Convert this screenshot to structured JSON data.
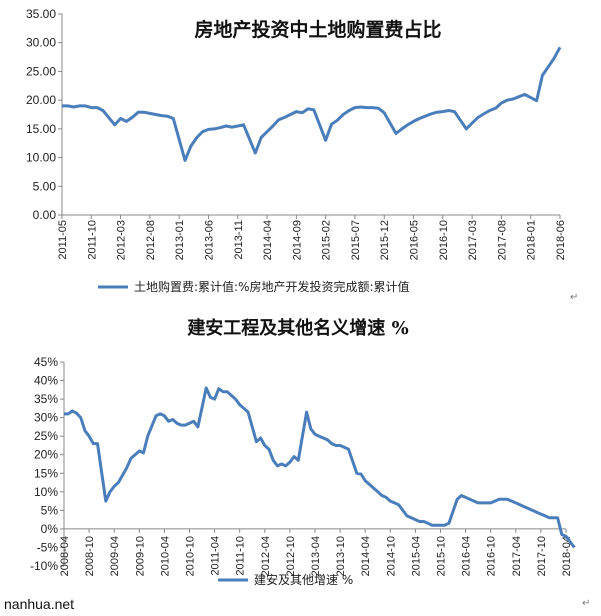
{
  "footer": {
    "site": "nanhua.net",
    "mark": "↵"
  },
  "chart_data": [
    {
      "type": "line",
      "title": "房地产投资中土地购置费占比",
      "ylim": [
        0,
        35
      ],
      "yticks": [
        "0.00",
        "5.00",
        "10.00",
        "15.00",
        "20.00",
        "25.00",
        "30.00",
        "35.00"
      ],
      "x_start": "2011-05",
      "x_end": "2018-06",
      "xticks": [
        "2011-05",
        "2011-10",
        "2012-03",
        "2012-08",
        "2013-01",
        "2013-06",
        "2013-11",
        "2014-04",
        "2014-09",
        "2015-02",
        "2015-07",
        "2015-12",
        "2016-05",
        "2016-10",
        "2017-03",
        "2017-08",
        "2018-01",
        "2018-06"
      ],
      "grid": false,
      "legend_position": "bottom",
      "series": [
        {
          "name": "土地购置费:累计值:%房地产开发投资完成额:累计值",
          "color": "#4a7ebb",
          "x": [
            "2011-05",
            "2011-06",
            "2011-07",
            "2011-08",
            "2011-09",
            "2011-10",
            "2011-11",
            "2011-12",
            "2012-02",
            "2012-03",
            "2012-04",
            "2012-05",
            "2012-06",
            "2012-07",
            "2012-08",
            "2012-09",
            "2012-10",
            "2012-11",
            "2012-12",
            "2013-02",
            "2013-03",
            "2013-04",
            "2013-05",
            "2013-06",
            "2013-07",
            "2013-08",
            "2013-09",
            "2013-10",
            "2013-11",
            "2013-12",
            "2014-02",
            "2014-03",
            "2014-04",
            "2014-05",
            "2014-06",
            "2014-07",
            "2014-08",
            "2014-09",
            "2014-10",
            "2014-11",
            "2014-12",
            "2015-02",
            "2015-03",
            "2015-04",
            "2015-05",
            "2015-06",
            "2015-07",
            "2015-08",
            "2015-09",
            "2015-10",
            "2015-11",
            "2015-12",
            "2016-02",
            "2016-03",
            "2016-04",
            "2016-05",
            "2016-06",
            "2016-07",
            "2016-08",
            "2016-09",
            "2016-10",
            "2016-11",
            "2016-12",
            "2017-02",
            "2017-03",
            "2017-04",
            "2017-05",
            "2017-06",
            "2017-07",
            "2017-08",
            "2017-09",
            "2017-10",
            "2017-11",
            "2017-12",
            "2018-02",
            "2018-03",
            "2018-04",
            "2018-05",
            "2018-06"
          ],
          "values": [
            19.0,
            19.0,
            18.8,
            19.0,
            19.0,
            18.7,
            18.7,
            18.2,
            15.7,
            16.8,
            16.3,
            17.0,
            17.9,
            17.9,
            17.7,
            17.5,
            17.3,
            17.2,
            16.8,
            9.5,
            12.0,
            13.5,
            14.5,
            14.9,
            15.0,
            15.2,
            15.5,
            15.3,
            15.5,
            15.7,
            10.8,
            13.5,
            14.5,
            15.5,
            16.6,
            17.0,
            17.5,
            18.0,
            17.8,
            18.5,
            18.3,
            13.0,
            15.8,
            16.5,
            17.5,
            18.2,
            18.7,
            18.8,
            18.7,
            18.7,
            18.6,
            17.8,
            14.2,
            15.0,
            15.7,
            16.3,
            16.8,
            17.2,
            17.6,
            17.9,
            18.0,
            18.2,
            18.0,
            15.0,
            16.0,
            17.0,
            17.6,
            18.2,
            18.6,
            19.5,
            20.0,
            20.2,
            20.6,
            21.0,
            19.9,
            24.3,
            25.8,
            27.3,
            29.2
          ]
        }
      ]
    },
    {
      "type": "line",
      "title": "建安工程及其他名义增速 %",
      "ylim": [
        -10,
        45
      ],
      "yticks": [
        "-10%",
        "-5%",
        "0%",
        "5%",
        "10%",
        "15%",
        "20%",
        "25%",
        "30%",
        "35%",
        "40%",
        "45%"
      ],
      "x_start": "2008-04",
      "x_end": "2018-04",
      "xticks": [
        "2008-04",
        "2008-10",
        "2009-04",
        "2009-10",
        "2010-04",
        "2010-10",
        "2011-04",
        "2011-10",
        "2012-04",
        "2012-10",
        "2013-04",
        "2013-10",
        "2014-04",
        "2014-10",
        "2015-04",
        "2015-10",
        "2016-04",
        "2016-10",
        "2017-04",
        "2017-10",
        "2018-04"
      ],
      "grid": false,
      "legend_position": "bottom",
      "series": [
        {
          "name": "建安及其他增速 %",
          "color": "#4a7ebb",
          "x": [
            "2008-04",
            "2008-05",
            "2008-06",
            "2008-07",
            "2008-08",
            "2008-09",
            "2008-10",
            "2008-11",
            "2008-12",
            "2009-02",
            "2009-03",
            "2009-04",
            "2009-05",
            "2009-06",
            "2009-07",
            "2009-08",
            "2009-09",
            "2009-10",
            "2009-11",
            "2009-12",
            "2010-02",
            "2010-03",
            "2010-04",
            "2010-05",
            "2010-06",
            "2010-07",
            "2010-08",
            "2010-09",
            "2010-10",
            "2010-11",
            "2010-12",
            "2011-02",
            "2011-03",
            "2011-04",
            "2011-05",
            "2011-06",
            "2011-07",
            "2011-08",
            "2011-09",
            "2011-10",
            "2011-11",
            "2011-12",
            "2012-02",
            "2012-03",
            "2012-04",
            "2012-05",
            "2012-06",
            "2012-07",
            "2012-08",
            "2012-09",
            "2012-10",
            "2012-11",
            "2012-12",
            "2013-02",
            "2013-03",
            "2013-04",
            "2013-05",
            "2013-06",
            "2013-07",
            "2013-08",
            "2013-09",
            "2013-10",
            "2013-11",
            "2013-12",
            "2014-02",
            "2014-03",
            "2014-04",
            "2014-05",
            "2014-06",
            "2014-07",
            "2014-08",
            "2014-09",
            "2014-10",
            "2014-11",
            "2014-12",
            "2015-02",
            "2015-03",
            "2015-04",
            "2015-05",
            "2015-06",
            "2015-07",
            "2015-08",
            "2015-09",
            "2015-10",
            "2015-11",
            "2015-12",
            "2016-02",
            "2016-03",
            "2016-04",
            "2016-05",
            "2016-06",
            "2016-07",
            "2016-08",
            "2016-09",
            "2016-10",
            "2016-11",
            "2016-12",
            "2017-02",
            "2017-03",
            "2017-04",
            "2017-05",
            "2017-06",
            "2017-07",
            "2017-08",
            "2017-09",
            "2017-10",
            "2017-11",
            "2017-12",
            "2018-02",
            "2018-03",
            "2018-04",
            "2018-05",
            "2018-06"
          ],
          "values": [
            31.0,
            31.0,
            31.8,
            31.2,
            30.0,
            26.5,
            25.0,
            23.0,
            23.0,
            7.5,
            10.0,
            11.5,
            12.5,
            14.5,
            16.5,
            19.0,
            20.0,
            21.0,
            20.5,
            25.0,
            30.5,
            31.0,
            30.5,
            29.0,
            29.5,
            28.5,
            28.0,
            28.0,
            28.5,
            29.0,
            27.5,
            38.0,
            35.5,
            35.0,
            37.8,
            37.0,
            37.0,
            36.0,
            35.0,
            33.5,
            32.5,
            31.5,
            23.5,
            24.5,
            22.5,
            21.5,
            18.5,
            17.0,
            17.5,
            17.0,
            18.0,
            19.5,
            18.5,
            31.5,
            27.0,
            25.5,
            25.0,
            24.5,
            24.0,
            23.0,
            22.5,
            22.5,
            22.0,
            21.5,
            15.0,
            14.8,
            13.0,
            12.0,
            11.0,
            10.0,
            9.0,
            8.5,
            7.5,
            7.0,
            6.5,
            3.5,
            3.0,
            2.5,
            2.0,
            2.0,
            1.5,
            1.0,
            1.0,
            1.0,
            1.0,
            1.5,
            8.0,
            9.0,
            8.5,
            8.0,
            7.5,
            7.0,
            7.0,
            7.0,
            7.0,
            7.5,
            8.0,
            8.0,
            7.5,
            7.0,
            6.5,
            6.0,
            5.5,
            5.0,
            4.5,
            4.0,
            3.5,
            3.0,
            3.0,
            -1.5,
            -2.0,
            -3.5,
            -5.0
          ]
        }
      ]
    }
  ]
}
